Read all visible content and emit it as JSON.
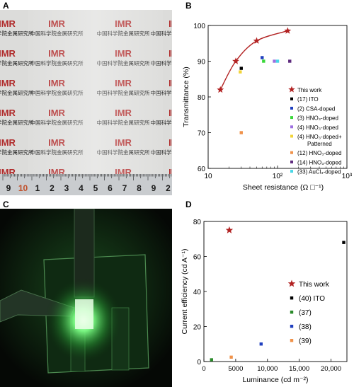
{
  "panels": {
    "a": "A",
    "b": "B",
    "c": "C",
    "d": "D"
  },
  "photo_a": {
    "logo_text": "IMR",
    "chinese_text": "中国科学院金属研究所",
    "ruler_digits": [
      "9",
      "10",
      "1",
      "2",
      "3",
      "4",
      "5",
      "6",
      "7",
      "8",
      "9",
      "2"
    ],
    "ruler_highlight_color": "#c0502a"
  },
  "photo_c": {
    "glow_color": "#5cff6a"
  },
  "chart_data": [
    {
      "panel": "B",
      "type": "scatter",
      "x_scale": "log",
      "xlabel": "Sheet resistance (Ω □⁻¹)",
      "ylabel": "Transmittance (%)",
      "xlim": [
        10,
        1000
      ],
      "ylim": [
        60,
        100
      ],
      "x_ticks": [
        10,
        100,
        1000
      ],
      "x_tick_labels": [
        "10",
        "10²",
        "10³"
      ],
      "y_ticks": [
        60,
        70,
        80,
        90,
        100
      ],
      "grid": false,
      "legend_position": "right",
      "series": [
        {
          "name": "This work",
          "marker": "star",
          "color": "#b22222",
          "line": true,
          "x": [
            15,
            25,
            50,
            140
          ],
          "y": [
            82,
            90,
            95.7,
            98.5
          ]
        },
        {
          "name": "(17) ITO",
          "marker": "square",
          "color": "#000000",
          "x": [
            30
          ],
          "y": [
            88
          ]
        },
        {
          "name": "(2) CSA-doped",
          "marker": "square",
          "color": "#1f3fbf",
          "x": [
            60
          ],
          "y": [
            91
          ]
        },
        {
          "name": "(3) HNO₃-doped",
          "marker": "square",
          "color": "#3ad83a",
          "x": [
            63
          ],
          "y": [
            90
          ]
        },
        {
          "name": "(4) HNO₃-doped",
          "marker": "square",
          "color": "#9d6fe0",
          "x": [
            90
          ],
          "y": [
            90
          ]
        },
        {
          "name": "(4) HNO₃-doped+ Patterned",
          "marker": "square",
          "color": "#f2d43a",
          "x": [
            29
          ],
          "y": [
            87
          ]
        },
        {
          "name": "(12) HNO₃-doped",
          "marker": "square",
          "color": "#f0924a",
          "x": [
            30
          ],
          "y": [
            70
          ]
        },
        {
          "name": "(14) HNO₃-doped",
          "marker": "square",
          "color": "#5e2a7e",
          "x": [
            150
          ],
          "y": [
            90
          ]
        },
        {
          "name": "(33) AuCl₃-doped",
          "marker": "square",
          "color": "#48d6e6",
          "x": [
            100
          ],
          "y": [
            90
          ]
        }
      ]
    },
    {
      "panel": "D",
      "type": "scatter",
      "xlabel": "Luminance (cd m⁻²)",
      "ylabel": "Current efficiency (cd A⁻¹)",
      "xlim": [
        0,
        22500
      ],
      "ylim": [
        0,
        80
      ],
      "x_ticks": [
        0,
        5000,
        10000,
        15000,
        20000
      ],
      "x_tick_labels": [
        "0",
        "5000",
        "10,000",
        "15,000",
        "20,000"
      ],
      "y_ticks": [
        0,
        20,
        40,
        60,
        80
      ],
      "grid": false,
      "legend_position": "right",
      "series": [
        {
          "name": "This work",
          "marker": "star",
          "color": "#b22222",
          "x": [
            4000
          ],
          "y": [
            75
          ]
        },
        {
          "name": "(40) ITO",
          "marker": "square",
          "color": "#000000",
          "x": [
            22000
          ],
          "y": [
            68
          ]
        },
        {
          "name": "(37)",
          "marker": "square",
          "color": "#2a8a2a",
          "x": [
            1200
          ],
          "y": [
            1
          ]
        },
        {
          "name": "(38)",
          "marker": "square",
          "color": "#1f3fbf",
          "x": [
            9000
          ],
          "y": [
            10
          ]
        },
        {
          "name": "(39)",
          "marker": "square",
          "color": "#f0924a",
          "x": [
            4300
          ],
          "y": [
            2.5
          ]
        }
      ]
    }
  ]
}
